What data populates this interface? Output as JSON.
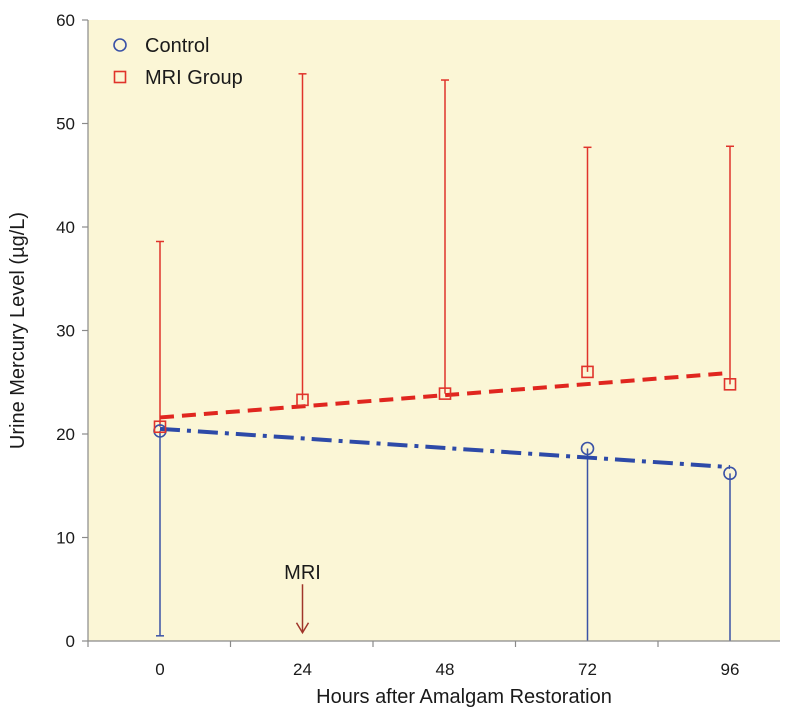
{
  "chart_data": {
    "type": "scatter",
    "title": "",
    "xlabel": "Hours after Amalgam Restoration",
    "ylabel": "Urine Mercury Level (µg/L)",
    "xlim": [
      -12,
      108
    ],
    "ylim": [
      0,
      60
    ],
    "x_ticks": [
      0,
      24,
      48,
      72,
      96
    ],
    "y_ticks": [
      0,
      10,
      20,
      30,
      40,
      50,
      60
    ],
    "grid": false,
    "legend_position": "top-left",
    "plot_background": "#fbf6d6",
    "series": [
      {
        "name": "Control",
        "marker": "circle",
        "color": "#3a52a6",
        "points": [
          {
            "x": 0,
            "y": 20.3,
            "err_low": 0.5
          },
          {
            "x": 72,
            "y": 18.6,
            "err_low": 0
          },
          {
            "x": 96,
            "y": 16.2,
            "err_low": 0
          }
        ],
        "trendline": {
          "style": "dash-dot",
          "color": "#2d4aa8",
          "x": [
            0,
            96
          ],
          "y": [
            20.5,
            16.8
          ]
        }
      },
      {
        "name": "MRI Group",
        "marker": "square",
        "color": "#e0332b",
        "points": [
          {
            "x": 0,
            "y": 20.7,
            "err_high": 38.6
          },
          {
            "x": 24,
            "y": 23.3,
            "err_high": 54.8
          },
          {
            "x": 48,
            "y": 23.9,
            "err_high": 54.2
          },
          {
            "x": 72,
            "y": 26.0,
            "err_high": 47.7
          },
          {
            "x": 96,
            "y": 24.8,
            "err_high": 47.8
          }
        ],
        "trendline": {
          "style": "dashed",
          "color": "#e0261f",
          "x": [
            0,
            96
          ],
          "y": [
            21.6,
            25.9
          ]
        }
      }
    ],
    "annotations": [
      {
        "text": "MRI",
        "x": 24,
        "arrow_from_y": 5.0,
        "arrow_to_y": 0.8,
        "color": "#a0352a"
      }
    ]
  }
}
